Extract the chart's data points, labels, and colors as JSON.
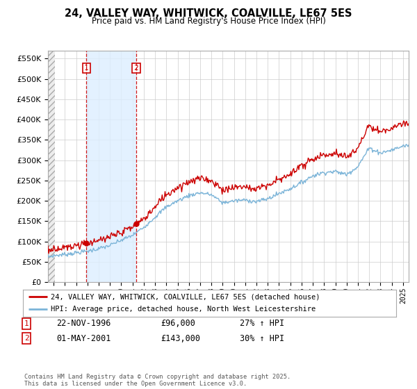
{
  "title": "24, VALLEY WAY, WHITWICK, COALVILLE, LE67 5ES",
  "subtitle": "Price paid vs. HM Land Registry's House Price Index (HPI)",
  "legend_line1": "24, VALLEY WAY, WHITWICK, COALVILLE, LE67 5ES (detached house)",
  "legend_line2": "HPI: Average price, detached house, North West Leicestershire",
  "transaction1_date": "22-NOV-1996",
  "transaction1_price": "£96,000",
  "transaction1_hpi": "27% ↑ HPI",
  "transaction1_year": 1996.9,
  "transaction1_value": 96000,
  "transaction2_date": "01-MAY-2001",
  "transaction2_price": "£143,000",
  "transaction2_hpi": "30% ↑ HPI",
  "transaction2_year": 2001.33,
  "transaction2_value": 143000,
  "footer": "Contains HM Land Registry data © Crown copyright and database right 2025.\nThis data is licensed under the Open Government Licence v3.0.",
  "hpi_color": "#7bb4d8",
  "price_color": "#cc0000",
  "shade_color": "#ddeeff",
  "background_color": "#ffffff",
  "grid_color": "#cccccc",
  "ylim": [
    0,
    570000
  ],
  "yticks": [
    0,
    50000,
    100000,
    150000,
    200000,
    250000,
    300000,
    350000,
    400000,
    450000,
    500000,
    550000
  ],
  "xmin": 1993.5,
  "xmax": 2025.5
}
